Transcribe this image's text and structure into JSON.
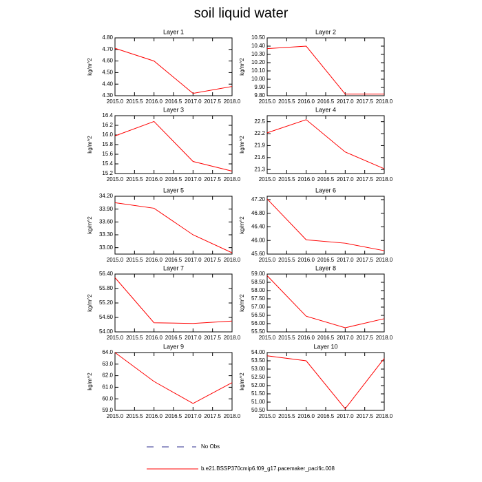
{
  "title": "soil liquid water",
  "reference_legend": {
    "name": "No Obs",
    "color": "#2b2b8c",
    "dashed": true
  },
  "chart_data": [
    {
      "type": "line",
      "title": "Layer 1",
      "ylabel": "kg/m^2",
      "x": [
        2015,
        2016,
        2017,
        2018
      ],
      "xlim": [
        2015,
        2018
      ],
      "xticks": [
        {
          "value": 2015,
          "label": "2015.0"
        },
        2015.5,
        {
          "value": 2016,
          "label": "2016.0"
        },
        2016.5,
        {
          "value": 2017,
          "label": "2017.0"
        },
        2017.5,
        {
          "value": 2018,
          "label": "2018.0"
        }
      ],
      "ylim": [
        4.3,
        4.8
      ],
      "yticks": [
        {
          "value": 4.3,
          "label": "4.30"
        },
        {
          "value": 4.4,
          "label": "4.40"
        },
        {
          "value": 4.5,
          "label": "4.50"
        },
        {
          "value": 4.6,
          "label": "4.60"
        },
        {
          "value": 4.7,
          "label": "4.70"
        },
        {
          "value": 4.8,
          "label": "4.80"
        }
      ],
      "series": [
        {
          "name": "b.e21.BSSP370cmip6.f09_g17.pacemaker_pacific.008",
          "color": "#ff0000",
          "values": [
            4.71,
            4.6,
            4.32,
            4.38
          ]
        }
      ]
    },
    {
      "type": "line",
      "title": "Layer 2",
      "ylabel": "kg/m^2",
      "x": [
        2015,
        2016,
        2017,
        2018
      ],
      "xlim": [
        2015,
        2018
      ],
      "xticks": [
        {
          "value": 2015,
          "label": "2015.0"
        },
        2015.5,
        {
          "value": 2016,
          "label": "2016.0"
        },
        2016.5,
        {
          "value": 2017,
          "label": "2017.0"
        },
        2017.5,
        {
          "value": 2018,
          "label": "2018.0"
        }
      ],
      "ylim": [
        9.8,
        10.5
      ],
      "yticks": [
        {
          "value": 9.8,
          "label": "9.80"
        },
        {
          "value": 9.9,
          "label": "9.90"
        },
        {
          "value": 10,
          "label": "10.00"
        },
        {
          "value": 10.1,
          "label": "10.10"
        },
        {
          "value": 10.2,
          "label": "10.20"
        },
        {
          "value": 10.3,
          "label": "10.30"
        },
        {
          "value": 10.4,
          "label": "10.40"
        },
        {
          "value": 10.5,
          "label": "10.50"
        }
      ],
      "series": [
        {
          "name": "b.e21.BSSP370cmip6.f09_g17.pacemaker_pacific.008",
          "color": "#ff0000",
          "values": [
            10.37,
            10.4,
            9.82,
            9.82
          ]
        }
      ]
    },
    {
      "type": "line",
      "title": "Layer 3",
      "ylabel": "kg/m^2",
      "x": [
        2015,
        2016,
        2017,
        2018
      ],
      "xlim": [
        2015,
        2018
      ],
      "xticks": [
        {
          "value": 2015,
          "label": "2015.0"
        },
        2015.5,
        {
          "value": 2016,
          "label": "2016.0"
        },
        2016.5,
        {
          "value": 2017,
          "label": "2017.0"
        },
        2017.5,
        {
          "value": 2018,
          "label": "2018.0"
        }
      ],
      "ylim": [
        15.2,
        16.4
      ],
      "yticks": [
        15.2,
        15.4,
        15.6,
        15.8,
        {
          "value": 16,
          "label": "16.0"
        },
        16.2,
        16.4
      ],
      "series": [
        {
          "name": "b.e21.BSSP370cmip6.f09_g17.pacemaker_pacific.008",
          "color": "#ff0000",
          "values": [
            15.98,
            16.28,
            15.45,
            15.25
          ]
        }
      ]
    },
    {
      "type": "line",
      "title": "Layer 4",
      "ylabel": "kg/m^2",
      "x": [
        2015,
        2016,
        2017,
        2018
      ],
      "xlim": [
        2015,
        2018
      ],
      "xticks": [
        {
          "value": 2015,
          "label": "2015.0"
        },
        2015.5,
        {
          "value": 2016,
          "label": "2016.0"
        },
        2016.5,
        {
          "value": 2017,
          "label": "2017.0"
        },
        2017.5,
        {
          "value": 2018,
          "label": "2018.0"
        }
      ],
      "ylim": [
        21.2,
        22.65
      ],
      "yticks": [
        21.3,
        21.6,
        21.9,
        22.2,
        22.5
      ],
      "series": [
        {
          "name": "b.e21.BSSP370cmip6.f09_g17.pacemaker_pacific.008",
          "color": "#ff0000",
          "values": [
            22.22,
            22.55,
            21.74,
            21.32
          ]
        }
      ]
    },
    {
      "type": "line",
      "title": "Layer 5",
      "ylabel": "kg/m^2",
      "x": [
        2015,
        2016,
        2017,
        2018
      ],
      "xlim": [
        2015,
        2018
      ],
      "xticks": [
        {
          "value": 2015,
          "label": "2015.0"
        },
        2015.5,
        {
          "value": 2016,
          "label": "2016.0"
        },
        2016.5,
        {
          "value": 2017,
          "label": "2017.0"
        },
        2017.5,
        {
          "value": 2018,
          "label": "2018.0"
        }
      ],
      "ylim": [
        32.85,
        34.2
      ],
      "yticks": [
        {
          "value": 33,
          "label": "33.00"
        },
        {
          "value": 33.3,
          "label": "33.30"
        },
        {
          "value": 33.6,
          "label": "33.60"
        },
        {
          "value": 33.9,
          "label": "33.90"
        },
        {
          "value": 34.2,
          "label": "34.20"
        }
      ],
      "series": [
        {
          "name": "b.e21.BSSP370cmip6.f09_g17.pacemaker_pacific.008",
          "color": "#ff0000",
          "values": [
            34.05,
            33.92,
            33.3,
            32.88
          ]
        }
      ]
    },
    {
      "type": "line",
      "title": "Layer 6",
      "ylabel": "kg/m^2",
      "x": [
        2015,
        2016,
        2017,
        2018
      ],
      "xlim": [
        2015,
        2018
      ],
      "xticks": [
        {
          "value": 2015,
          "label": "2015.0"
        },
        2015.5,
        {
          "value": 2016,
          "label": "2016.0"
        },
        2016.5,
        {
          "value": 2017,
          "label": "2017.0"
        },
        2017.5,
        {
          "value": 2018,
          "label": "2018.0"
        }
      ],
      "ylim": [
        45.6,
        47.3
      ],
      "yticks": [
        {
          "value": 45.6,
          "label": "45.60"
        },
        {
          "value": 46,
          "label": "46.00"
        },
        {
          "value": 46.4,
          "label": "46.40"
        },
        {
          "value": 46.8,
          "label": "46.80"
        },
        {
          "value": 47.2,
          "label": "47.20"
        }
      ],
      "series": [
        {
          "name": "b.e21.BSSP370cmip6.f09_g17.pacemaker_pacific.008",
          "color": "#ff0000",
          "values": [
            47.22,
            46.02,
            45.92,
            45.7
          ]
        }
      ]
    },
    {
      "type": "line",
      "title": "Layer 7",
      "ylabel": "kg/m^2",
      "x": [
        2015,
        2016,
        2017,
        2018
      ],
      "xlim": [
        2015,
        2018
      ],
      "xticks": [
        {
          "value": 2015,
          "label": "2015.0"
        },
        2015.5,
        {
          "value": 2016,
          "label": "2016.0"
        },
        2016.5,
        {
          "value": 2017,
          "label": "2017.0"
        },
        2017.5,
        {
          "value": 2018,
          "label": "2018.0"
        }
      ],
      "ylim": [
        54,
        56.4
      ],
      "yticks": [
        {
          "value": 54,
          "label": "54.00"
        },
        {
          "value": 54.6,
          "label": "54.60"
        },
        {
          "value": 55.2,
          "label": "55.20"
        },
        {
          "value": 55.8,
          "label": "55.80"
        },
        {
          "value": 56.4,
          "label": "56.40"
        }
      ],
      "series": [
        {
          "name": "b.e21.BSSP370cmip6.f09_g17.pacemaker_pacific.008",
          "color": "#ff0000",
          "values": [
            56.25,
            54.38,
            54.35,
            54.45
          ]
        }
      ]
    },
    {
      "type": "line",
      "title": "Layer 8",
      "ylabel": "kg/m^2",
      "x": [
        2015,
        2016,
        2017,
        2018
      ],
      "xlim": [
        2015,
        2018
      ],
      "xticks": [
        {
          "value": 2015,
          "label": "2015.0"
        },
        2015.5,
        {
          "value": 2016,
          "label": "2016.0"
        },
        2016.5,
        {
          "value": 2017,
          "label": "2017.0"
        },
        2017.5,
        {
          "value": 2018,
          "label": "2018.0"
        }
      ],
      "ylim": [
        55.5,
        59
      ],
      "yticks": [
        {
          "value": 55.5,
          "label": "55.50"
        },
        {
          "value": 56,
          "label": "56.00"
        },
        {
          "value": 56.5,
          "label": "56.50"
        },
        {
          "value": 57,
          "label": "57.00"
        },
        {
          "value": 57.5,
          "label": "57.50"
        },
        {
          "value": 58,
          "label": "58.00"
        },
        {
          "value": 58.5,
          "label": "58.50"
        },
        {
          "value": 59,
          "label": "59.00"
        }
      ],
      "series": [
        {
          "name": "b.e21.BSSP370cmip6.f09_g17.pacemaker_pacific.008",
          "color": "#ff0000",
          "values": [
            58.9,
            56.45,
            55.75,
            56.3
          ]
        }
      ]
    },
    {
      "type": "line",
      "title": "Layer 9",
      "ylabel": "kg/m^2",
      "x": [
        2015,
        2016,
        2017,
        2018
      ],
      "xlim": [
        2015,
        2018
      ],
      "xticks": [
        {
          "value": 2015,
          "label": "2015.0"
        },
        2015.5,
        {
          "value": 2016,
          "label": "2016.0"
        },
        2016.5,
        {
          "value": 2017,
          "label": "2017.0"
        },
        2017.5,
        {
          "value": 2018,
          "label": "2018.0"
        }
      ],
      "ylim": [
        59,
        64
      ],
      "yticks": [
        {
          "value": 59,
          "label": "59.0"
        },
        {
          "value": 60,
          "label": "60.0"
        },
        {
          "value": 61,
          "label": "61.0"
        },
        {
          "value": 62,
          "label": "62.0"
        },
        {
          "value": 63,
          "label": "63.0"
        },
        {
          "value": 64,
          "label": "64.0"
        }
      ],
      "series": [
        {
          "name": "b.e21.BSSP370cmip6.f09_g17.pacemaker_pacific.008",
          "color": "#ff0000",
          "values": [
            64,
            61.5,
            59.6,
            61.4
          ]
        }
      ]
    },
    {
      "type": "line",
      "title": "Layer 10",
      "ylabel": "kg/m^2",
      "x": [
        2015,
        2016,
        2017,
        2018
      ],
      "xlim": [
        2015,
        2018
      ],
      "xticks": [
        {
          "value": 2015,
          "label": "2015.0"
        },
        2015.5,
        {
          "value": 2016,
          "label": "2016.0"
        },
        2016.5,
        {
          "value": 2017,
          "label": "2017.0"
        },
        2017.5,
        {
          "value": 2018,
          "label": "2018.0"
        }
      ],
      "ylim": [
        50.5,
        54
      ],
      "yticks": [
        {
          "value": 50.5,
          "label": "50.50"
        },
        {
          "value": 51,
          "label": "51.00"
        },
        {
          "value": 51.5,
          "label": "51.50"
        },
        {
          "value": 52,
          "label": "52.00"
        },
        {
          "value": 52.5,
          "label": "52.50"
        },
        {
          "value": 53,
          "label": "53.00"
        },
        {
          "value": 53.5,
          "label": "53.50"
        },
        {
          "value": 54,
          "label": "54.00"
        }
      ],
      "series": [
        {
          "name": "b.e21.BSSP370cmip6.f09_g17.pacemaker_pacific.008",
          "color": "#ff0000",
          "values": [
            53.8,
            53.5,
            50.6,
            53.65
          ]
        }
      ]
    }
  ]
}
